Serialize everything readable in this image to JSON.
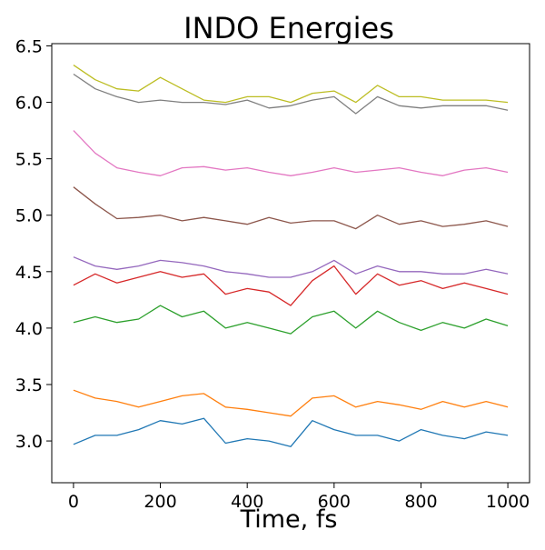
{
  "chart_data": {
    "type": "line",
    "title": "INDO Energies",
    "xlabel": "Time, fs",
    "ylabel": "",
    "xlim": [
      -50,
      1050
    ],
    "ylim": [
      2.63,
      6.52
    ],
    "xticks": [
      0,
      200,
      400,
      600,
      800,
      1000
    ],
    "yticks": [
      3.0,
      3.5,
      4.0,
      4.5,
      5.0,
      5.5,
      6.0,
      6.5
    ],
    "ytick_labels": [
      "3.0",
      "3.5",
      "4.0",
      "4.5",
      "5.0",
      "5.5",
      "6.0",
      "6.5"
    ],
    "grid": false,
    "legend": "none",
    "x": [
      0,
      50,
      100,
      150,
      200,
      250,
      300,
      350,
      400,
      450,
      500,
      550,
      600,
      650,
      700,
      750,
      800,
      850,
      900,
      950,
      1000
    ],
    "series": [
      {
        "color": "#1f77b4",
        "values": [
          2.97,
          3.05,
          3.05,
          3.1,
          3.18,
          3.15,
          3.2,
          2.98,
          3.02,
          3.0,
          2.95,
          3.18,
          3.1,
          3.05,
          3.05,
          3.0,
          3.1,
          3.05,
          3.02,
          3.08,
          3.05
        ]
      },
      {
        "color": "#ff7f0e",
        "values": [
          3.45,
          3.38,
          3.35,
          3.3,
          3.35,
          3.4,
          3.42,
          3.3,
          3.28,
          3.25,
          3.22,
          3.38,
          3.4,
          3.3,
          3.35,
          3.32,
          3.28,
          3.35,
          3.3,
          3.35,
          3.3
        ]
      },
      {
        "color": "#2ca02c",
        "values": [
          4.05,
          4.1,
          4.05,
          4.08,
          4.2,
          4.1,
          4.15,
          4.0,
          4.05,
          4.0,
          3.95,
          4.1,
          4.15,
          4.0,
          4.15,
          4.05,
          3.98,
          4.05,
          4.0,
          4.08,
          4.02
        ]
      },
      {
        "color": "#d62728",
        "values": [
          4.38,
          4.48,
          4.4,
          4.45,
          4.5,
          4.45,
          4.48,
          4.3,
          4.35,
          4.32,
          4.2,
          4.42,
          4.55,
          4.3,
          4.48,
          4.38,
          4.42,
          4.35,
          4.4,
          4.35,
          4.3
        ]
      },
      {
        "color": "#9467bd",
        "values": [
          4.63,
          4.55,
          4.52,
          4.55,
          4.6,
          4.58,
          4.55,
          4.5,
          4.48,
          4.45,
          4.45,
          4.5,
          4.6,
          4.48,
          4.55,
          4.5,
          4.5,
          4.48,
          4.48,
          4.52,
          4.48
        ]
      },
      {
        "color": "#8c564b",
        "values": [
          5.25,
          5.1,
          4.97,
          4.98,
          5.0,
          4.95,
          4.98,
          4.95,
          4.92,
          4.98,
          4.93,
          4.95,
          4.95,
          4.88,
          5.0,
          4.92,
          4.95,
          4.9,
          4.92,
          4.95,
          4.9
        ]
      },
      {
        "color": "#e377c2",
        "values": [
          5.75,
          5.55,
          5.42,
          5.38,
          5.35,
          5.42,
          5.43,
          5.4,
          5.42,
          5.38,
          5.35,
          5.38,
          5.42,
          5.38,
          5.4,
          5.42,
          5.38,
          5.35,
          5.4,
          5.42,
          5.38
        ]
      },
      {
        "color": "#7f7f7f",
        "values": [
          6.25,
          6.12,
          6.05,
          6.0,
          6.02,
          6.0,
          6.0,
          5.98,
          6.02,
          5.95,
          5.97,
          6.02,
          6.05,
          5.9,
          6.05,
          5.97,
          5.95,
          5.97,
          5.97,
          5.97,
          5.93
        ]
      },
      {
        "color": "#bcbd22",
        "values": [
          6.33,
          6.2,
          6.12,
          6.1,
          6.22,
          6.12,
          6.02,
          6.0,
          6.05,
          6.05,
          6.0,
          6.08,
          6.1,
          6.0,
          6.15,
          6.05,
          6.05,
          6.02,
          6.02,
          6.02,
          6.0
        ]
      }
    ]
  }
}
